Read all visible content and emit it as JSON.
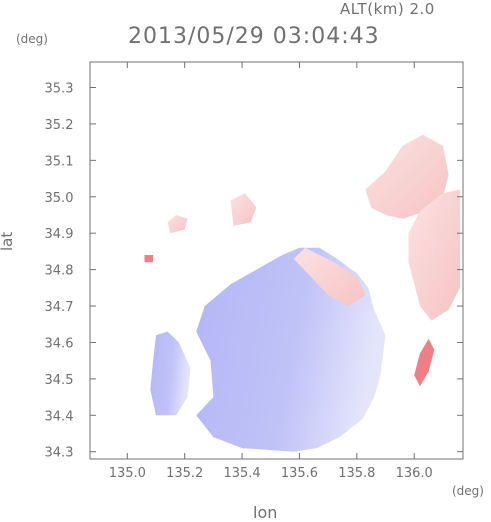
{
  "header": {
    "altitude_label": "ALT(km) 2.0",
    "timestamp": "2013/05/29 03:04:43"
  },
  "chart_data": {
    "type": "heatmap",
    "title": "2013/05/29 03:04:43",
    "subtitle": "ALT(km) 2.0",
    "xlabel": "lon",
    "ylabel": "lat",
    "x_unit": "(deg)",
    "y_unit": "(deg)",
    "xlim": [
      134.87,
      136.17
    ],
    "ylim": [
      34.28,
      35.37
    ],
    "x_ticks": [
      135.0,
      135.2,
      135.4,
      135.6,
      135.8,
      136.0
    ],
    "x_tick_labels": [
      "135.0",
      "135.2",
      "135.4",
      "135.6",
      "135.8",
      "136.0"
    ],
    "y_ticks": [
      34.3,
      34.4,
      34.5,
      34.6,
      34.7,
      34.8,
      34.9,
      35.0,
      35.1,
      35.2,
      35.3
    ],
    "y_tick_labels": [
      "34.3",
      "34.4",
      "34.5",
      "34.6",
      "34.7",
      "34.8",
      "34.9",
      "35.0",
      "35.1",
      "35.2",
      "35.3"
    ],
    "grid": false,
    "colors": {
      "approaching": "#b8bcf6",
      "receding": "#f7c6c6",
      "strong_receding": "#ef7f86",
      "axis": "#707070"
    },
    "regions": [
      {
        "sign": "negative",
        "polygon": [
          [
            135.58,
            34.3
          ],
          [
            135.4,
            34.31
          ],
          [
            135.3,
            34.34
          ],
          [
            135.24,
            34.4
          ],
          [
            135.3,
            34.45
          ],
          [
            135.29,
            34.55
          ],
          [
            135.24,
            34.63
          ],
          [
            135.27,
            34.7
          ],
          [
            135.36,
            34.76
          ],
          [
            135.45,
            34.8
          ],
          [
            135.54,
            34.84
          ],
          [
            135.6,
            34.86
          ],
          [
            135.67,
            34.86
          ],
          [
            135.73,
            34.83
          ],
          [
            135.8,
            34.79
          ],
          [
            135.84,
            34.75
          ],
          [
            135.86,
            34.69
          ],
          [
            135.9,
            34.62
          ],
          [
            135.89,
            34.56
          ],
          [
            135.88,
            34.5
          ],
          [
            135.86,
            34.45
          ],
          [
            135.82,
            34.39
          ],
          [
            135.74,
            34.34
          ],
          [
            135.66,
            34.31
          ]
        ]
      },
      {
        "sign": "negative",
        "polygon": [
          [
            135.14,
            34.63
          ],
          [
            135.18,
            34.6
          ],
          [
            135.22,
            34.53
          ],
          [
            135.21,
            34.45
          ],
          [
            135.17,
            34.4
          ],
          [
            135.1,
            34.4
          ],
          [
            135.08,
            34.47
          ],
          [
            135.09,
            34.55
          ],
          [
            135.1,
            34.62
          ]
        ]
      },
      {
        "sign": "positive",
        "polygon": [
          [
            135.62,
            34.86
          ],
          [
            135.72,
            34.82
          ],
          [
            135.8,
            34.78
          ],
          [
            135.83,
            34.73
          ],
          [
            135.77,
            34.7
          ],
          [
            135.7,
            34.73
          ],
          [
            135.64,
            34.78
          ],
          [
            135.58,
            34.83
          ]
        ]
      },
      {
        "sign": "positive",
        "polygon": [
          [
            135.83,
            35.02
          ],
          [
            135.9,
            35.07
          ],
          [
            135.96,
            35.14
          ],
          [
            136.03,
            35.17
          ],
          [
            136.1,
            35.14
          ],
          [
            136.12,
            35.06
          ],
          [
            136.1,
            35.0
          ],
          [
            136.04,
            34.96
          ],
          [
            135.96,
            34.94
          ],
          [
            135.9,
            34.95
          ],
          [
            135.85,
            34.97
          ]
        ]
      },
      {
        "sign": "positive",
        "polygon": [
          [
            136.02,
            34.96
          ],
          [
            136.1,
            35.01
          ],
          [
            136.16,
            35.02
          ],
          [
            136.16,
            34.75
          ],
          [
            136.12,
            34.69
          ],
          [
            136.06,
            34.66
          ],
          [
            136.02,
            34.7
          ],
          [
            135.98,
            34.82
          ],
          [
            135.98,
            34.9
          ]
        ]
      },
      {
        "sign": "positive",
        "polygon": [
          [
            135.37,
            34.92
          ],
          [
            135.43,
            34.93
          ],
          [
            135.45,
            34.97
          ],
          [
            135.41,
            35.01
          ],
          [
            135.36,
            34.99
          ]
        ]
      },
      {
        "sign": "positive",
        "polygon": [
          [
            135.15,
            34.9
          ],
          [
            135.2,
            34.91
          ],
          [
            135.21,
            34.94
          ],
          [
            135.17,
            34.95
          ],
          [
            135.14,
            34.93
          ]
        ]
      },
      {
        "sign": "strong_positive",
        "polygon": [
          [
            136.02,
            34.48
          ],
          [
            136.05,
            34.52
          ],
          [
            136.07,
            34.58
          ],
          [
            136.05,
            34.61
          ],
          [
            136.02,
            34.57
          ],
          [
            136.0,
            34.51
          ]
        ]
      },
      {
        "sign": "strong_positive",
        "polygon": [
          [
            135.06,
            34.82
          ],
          [
            135.09,
            34.82
          ],
          [
            135.09,
            34.84
          ],
          [
            135.06,
            34.84
          ]
        ]
      }
    ]
  }
}
